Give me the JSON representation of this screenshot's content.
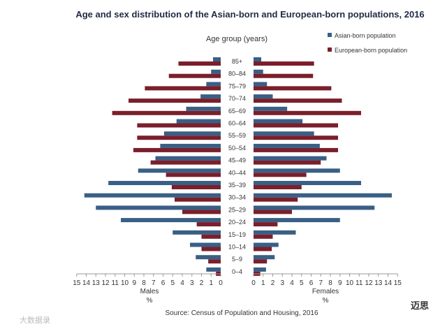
{
  "chart_data": {
    "type": "bar",
    "orientation": "horizontal-population-pyramid",
    "title": "Age and sex distribution of the Asian-born and European-born populations, 2016",
    "age_axis_title": "Age group  (years)",
    "categories": [
      "85+",
      "80–84",
      "75–79",
      "70–74",
      "65–69",
      "60–64",
      "55–59",
      "50–54",
      "45–49",
      "40–44",
      "35–39",
      "30–34",
      "25–29",
      "20–24",
      "15–19",
      "10–14",
      "5–9",
      "0–4"
    ],
    "series": [
      {
        "name": "Asian-born population",
        "color": "#3a5f85",
        "males": [
          0.8,
          1.0,
          1.5,
          2.1,
          3.6,
          4.6,
          5.9,
          6.3,
          6.8,
          8.6,
          11.7,
          14.2,
          13.0,
          10.4,
          5.0,
          3.2,
          2.6,
          1.5
        ],
        "females": [
          0.8,
          1.0,
          1.4,
          2.0,
          3.5,
          5.1,
          6.3,
          6.9,
          7.6,
          9.0,
          11.2,
          14.4,
          12.6,
          9.0,
          4.4,
          2.6,
          2.2,
          1.3
        ]
      },
      {
        "name": "European-born population",
        "color": "#7a1f2b",
        "males": [
          4.4,
          5.4,
          7.9,
          9.6,
          11.3,
          8.7,
          8.7,
          9.1,
          7.3,
          5.7,
          5.1,
          4.8,
          4.0,
          2.5,
          2.0,
          2.0,
          1.3,
          0.5
        ],
        "females": [
          6.3,
          6.2,
          8.1,
          9.2,
          11.2,
          8.8,
          8.8,
          8.8,
          7.0,
          5.5,
          5.0,
          4.6,
          4.0,
          2.5,
          2.0,
          1.9,
          1.4,
          0.7
        ]
      }
    ],
    "male_axis": {
      "label": "Males",
      "unit": "%",
      "ticks": [
        15,
        14,
        13,
        12,
        11,
        10,
        9,
        8,
        7,
        6,
        5,
        4,
        3,
        2,
        1,
        0
      ],
      "range": [
        0,
        15
      ]
    },
    "female_axis": {
      "label": "Females",
      "unit": "%",
      "ticks": [
        0,
        1,
        2,
        3,
        4,
        5,
        6,
        7,
        8,
        9,
        10,
        11,
        12,
        13,
        14,
        15
      ],
      "range": [
        0,
        15
      ]
    },
    "legend_position": "top-right",
    "grid": false,
    "source": "Source: Census of Population and Housing, 2016"
  },
  "watermark_left": "大数据录",
  "watermark_right": "迈思"
}
